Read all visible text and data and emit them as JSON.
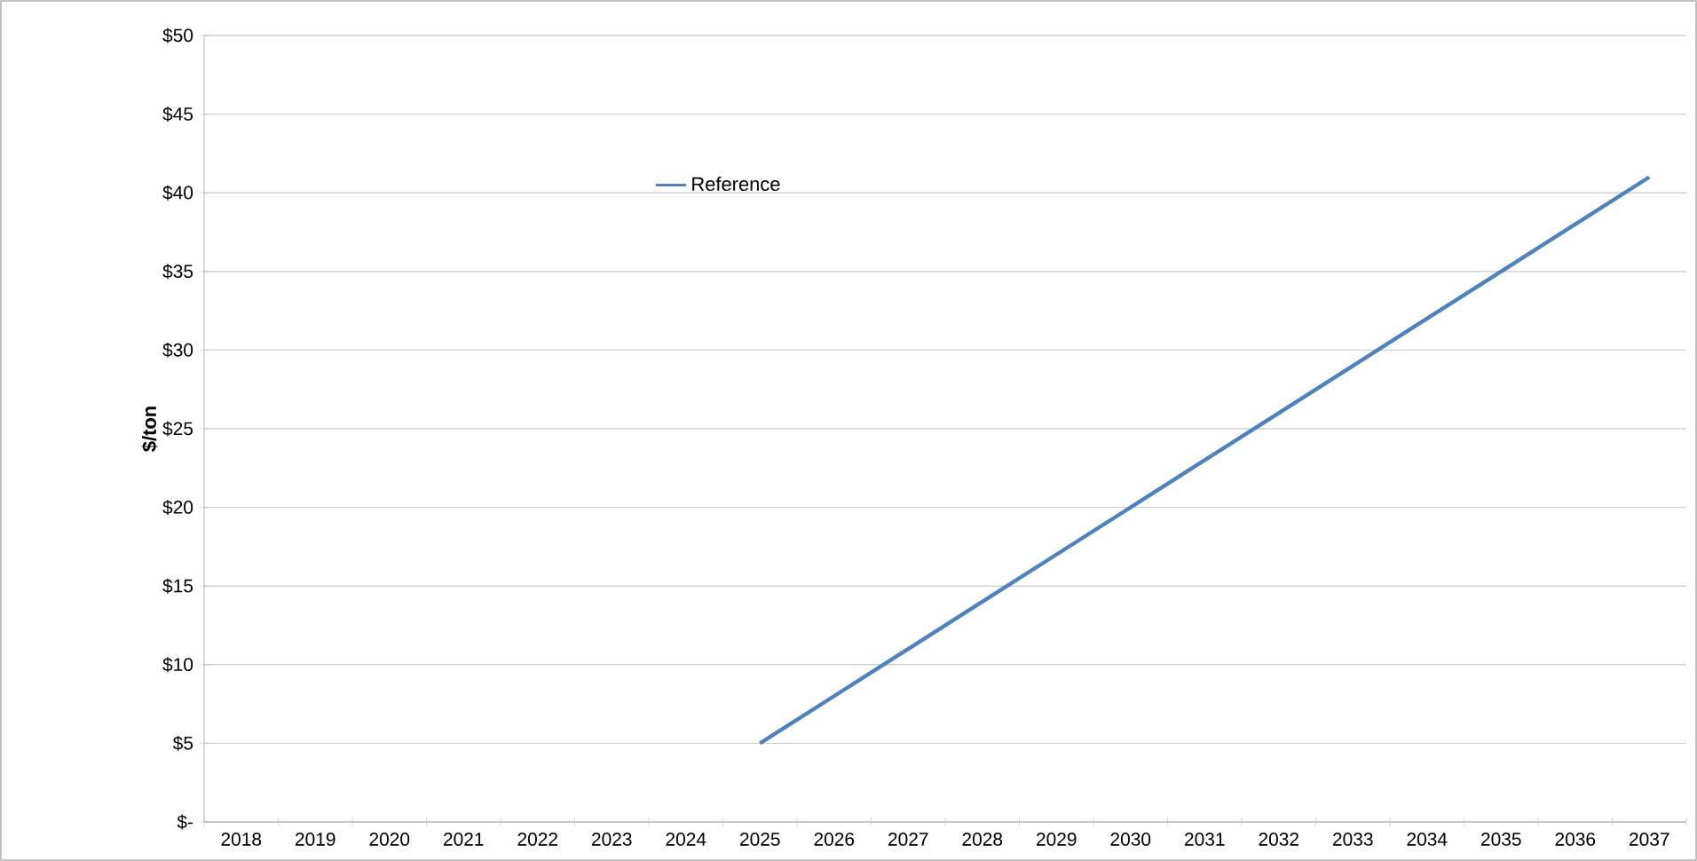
{
  "chart_data": {
    "type": "line",
    "ylabel": "$/ton",
    "categories": [
      "2018",
      "2019",
      "2020",
      "2021",
      "2022",
      "2023",
      "2024",
      "2025",
      "2026",
      "2027",
      "2028",
      "2029",
      "2030",
      "2031",
      "2032",
      "2033",
      "2034",
      "2035",
      "2036",
      "2037"
    ],
    "series": [
      {
        "name": "Reference",
        "color": "#4f81bd",
        "values": [
          null,
          null,
          null,
          null,
          null,
          null,
          null,
          5,
          8,
          11,
          14,
          17,
          20,
          23,
          26,
          29,
          32,
          35,
          38,
          41
        ]
      }
    ],
    "ylim": [
      0,
      50
    ],
    "yticks": [
      {
        "value": 0,
        "label": "$-"
      },
      {
        "value": 5,
        "label": "$5"
      },
      {
        "value": 10,
        "label": "$10"
      },
      {
        "value": 15,
        "label": "$15"
      },
      {
        "value": 20,
        "label": "$20"
      },
      {
        "value": 25,
        "label": "$25"
      },
      {
        "value": 30,
        "label": "$30"
      },
      {
        "value": 35,
        "label": "$35"
      },
      {
        "value": 40,
        "label": "$40"
      },
      {
        "value": 45,
        "label": "$45"
      },
      {
        "value": 50,
        "label": "$50"
      }
    ],
    "grid": "y",
    "legend": "top left",
    "marker": "none",
    "line_style": "solid"
  }
}
